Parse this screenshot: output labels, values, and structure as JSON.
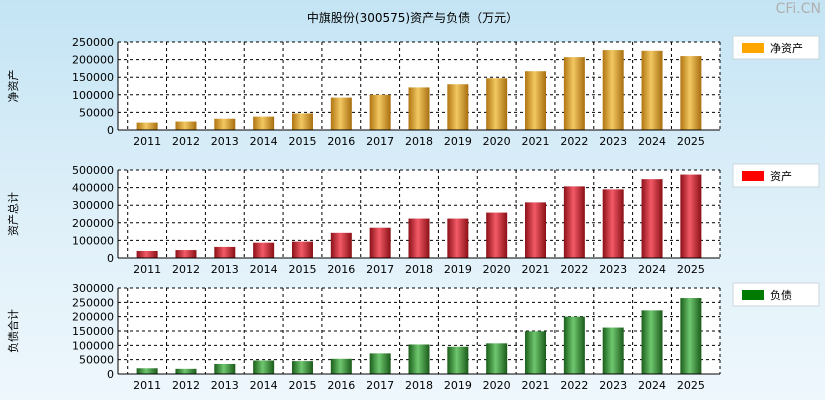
{
  "title": "中旗股份(300575)资产与负债（万元）",
  "watermark": "CFi.CN",
  "chart_data": [
    {
      "type": "bar",
      "ylabel": "净资产",
      "legend": "净资产",
      "legend_color": "#ffa500",
      "bar_colors": [
        "#b07512",
        "#f2c862",
        "#a86e10"
      ],
      "ylim": [
        0,
        250000
      ],
      "yticks": [
        0,
        50000,
        100000,
        150000,
        200000,
        250000
      ],
      "categories": [
        "2011",
        "2012",
        "2013",
        "2014",
        "2015",
        "2016",
        "2017",
        "2018",
        "2019",
        "2020",
        "2021",
        "2022",
        "2023",
        "2024",
        "2025"
      ],
      "values": [
        21000,
        24000,
        32000,
        38000,
        47000,
        92000,
        100000,
        121000,
        130000,
        147000,
        167000,
        207000,
        227000,
        225000,
        210000
      ]
    },
    {
      "type": "bar",
      "ylabel": "资产总计",
      "legend": "资产",
      "legend_color": "#ff0000",
      "bar_colors": [
        "#8c1018",
        "#f25a66",
        "#8a0f16"
      ],
      "ylim": [
        0,
        500000
      ],
      "yticks": [
        0,
        100000,
        200000,
        300000,
        400000,
        500000
      ],
      "categories": [
        "2011",
        "2012",
        "2013",
        "2014",
        "2015",
        "2016",
        "2017",
        "2018",
        "2019",
        "2020",
        "2021",
        "2022",
        "2023",
        "2024",
        "2025"
      ],
      "values": [
        40000,
        45000,
        63000,
        87000,
        93000,
        143000,
        172000,
        224000,
        224000,
        258000,
        316000,
        407000,
        390000,
        448000,
        474000
      ]
    },
    {
      "type": "bar",
      "ylabel": "负债合计",
      "legend": "负债",
      "legend_color": "#007a00",
      "bar_colors": [
        "#1a5e1a",
        "#6fc76f",
        "#1a5a1a"
      ],
      "ylim": [
        0,
        300000
      ],
      "yticks": [
        0,
        50000,
        100000,
        150000,
        200000,
        250000,
        300000
      ],
      "categories": [
        "2011",
        "2012",
        "2013",
        "2014",
        "2015",
        "2016",
        "2017",
        "2018",
        "2019",
        "2020",
        "2021",
        "2022",
        "2023",
        "2024",
        "2025"
      ],
      "values": [
        20000,
        18000,
        35000,
        47000,
        45000,
        53000,
        72000,
        103000,
        95000,
        107000,
        149000,
        200000,
        162000,
        222000,
        265000
      ]
    }
  ]
}
